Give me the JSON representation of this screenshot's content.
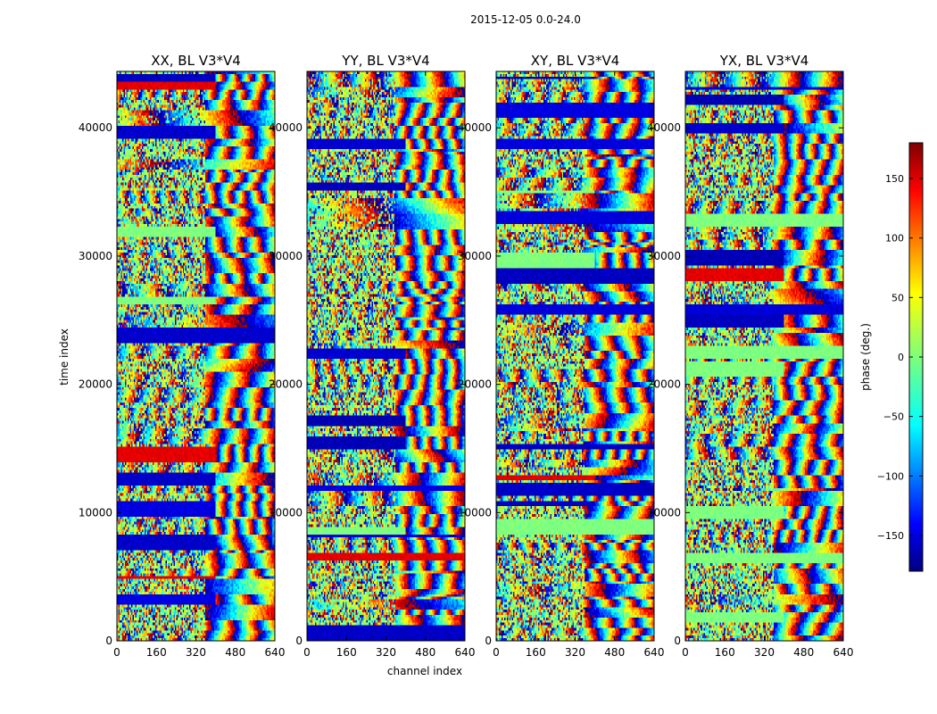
{
  "chart_data": {
    "type": "heatmap",
    "title": "2015-12-05 0.0-24.0",
    "xlabel": "channel index",
    "ylabel": "time index",
    "xlim": [
      0,
      640
    ],
    "ylim": [
      0,
      44400
    ],
    "x_ticks": [
      "0",
      "160",
      "320",
      "480",
      "640"
    ],
    "x_tick_values": [
      0,
      160,
      320,
      480,
      640
    ],
    "y_ticks": [
      "0",
      "10000",
      "20000",
      "30000",
      "40000"
    ],
    "y_tick_values": [
      0,
      10000,
      20000,
      30000,
      40000
    ],
    "panels": [
      {
        "title": "XX, BL V3*V4"
      },
      {
        "title": "YY, BL V3*V4"
      },
      {
        "title": "XY, BL V3*V4"
      },
      {
        "title": "YX, BL V3*V4"
      }
    ],
    "colorbar": {
      "label": "phase (deg.)",
      "range": [
        -180,
        180
      ],
      "ticks": [
        "150",
        "100",
        "50",
        "0",
        "−50",
        "−100",
        "−150"
      ],
      "tick_values": [
        150,
        100,
        50,
        0,
        -50,
        -100,
        -150
      ],
      "colormap": "jet"
    },
    "value_description": "Phase (deg.) per time index and channel index; dense noisy fringe pattern with horizontal bands"
  }
}
